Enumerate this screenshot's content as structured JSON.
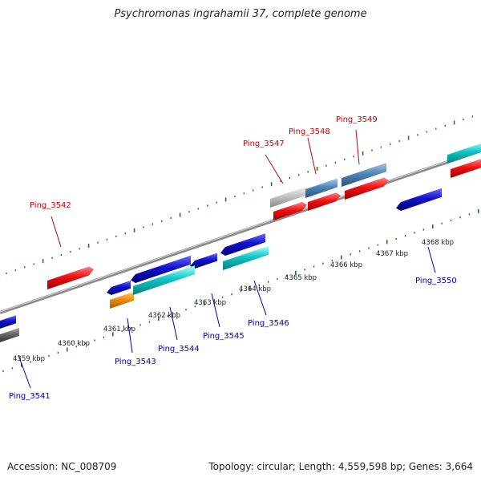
{
  "title": "Psychromonas ingrahamii 37, complete genome",
  "footer": {
    "accession": "Accession: NC_008709",
    "summary": "Topology: circular; Length: 4,559,598 bp; Genes: 3,664"
  },
  "colors": {
    "backbone": "#8a8a8a",
    "tick": "#1f7a1f",
    "label_forward": "#cc0000",
    "label_reverse": "#0000bb",
    "red": "#ee1111",
    "blue": "#1111cc",
    "cyan": "#11c6c6",
    "steel": "#4f86b8",
    "gray": "#bdbdbd",
    "orange": "#f08c10",
    "dark": "#555555"
  },
  "axis": {
    "kbp_labels": [
      "4359 kbp",
      "4360 kbp",
      "4361 kbp",
      "4362 kbp",
      "4363 kbp",
      "4364 kbp",
      "4365 kbp",
      "4366 kbp",
      "4367 kbp",
      "4368 kbp"
    ]
  },
  "genes": {
    "Ping_3541": "Ping_3541",
    "Ping_3542": "Ping_3542",
    "Ping_3543": "Ping_3543",
    "Ping_3544": "Ping_3544",
    "Ping_3545": "Ping_3545",
    "Ping_3546": "Ping_3546",
    "Ping_3547": "Ping_3547",
    "Ping_3548": "Ping_3548",
    "Ping_3549": "Ping_3549",
    "Ping_3550": "Ping_3550"
  }
}
